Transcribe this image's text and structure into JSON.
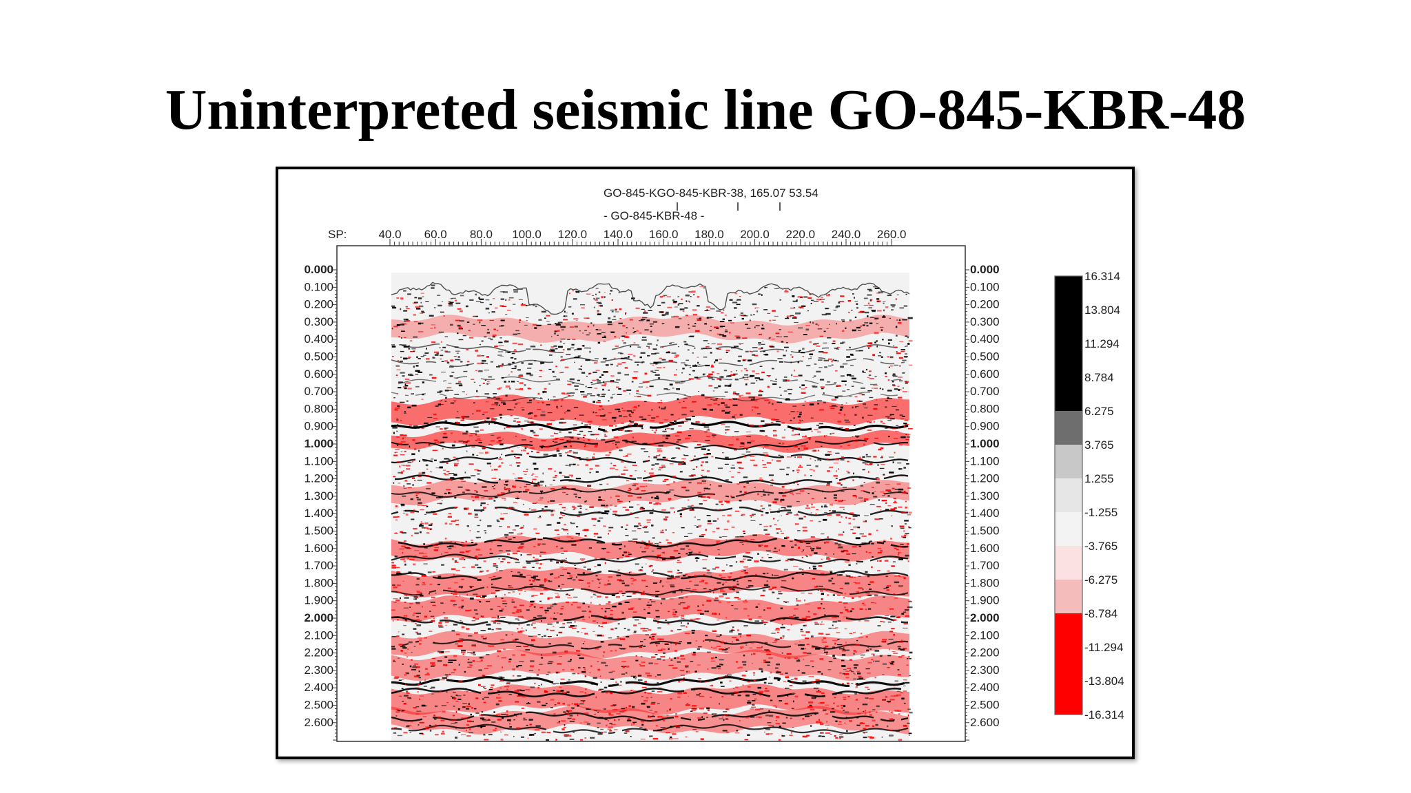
{
  "slide": {
    "title": "Uninterpreted seismic line GO-845-KBR-48"
  },
  "seismic_section": {
    "header_line_1": "GO-845-KGO-845-KBR-38, 165.07 53.54",
    "header_line_2": "- GO-845-KBR-48 -",
    "shotpoint_axis_label": "SP:",
    "shotpoint_ticks": [
      "40.0",
      "60.0",
      "80.0",
      "100.0",
      "120.0",
      "140.0",
      "160.0",
      "180.0",
      "200.0",
      "220.0",
      "240.0",
      "260.0"
    ],
    "time_ticks": [
      "0.000",
      "0.100",
      "0.200",
      "0.300",
      "0.400",
      "0.500",
      "0.600",
      "0.700",
      "0.800",
      "0.900",
      "1.000",
      "1.100",
      "1.200",
      "1.300",
      "1.400",
      "1.500",
      "1.600",
      "1.700",
      "1.800",
      "1.900",
      "2.000",
      "2.100",
      "2.200",
      "2.300",
      "2.400",
      "2.500",
      "2.600"
    ],
    "bold_time_ticks": [
      "0.000",
      "1.000",
      "2.000"
    ],
    "colors": {
      "positive": "#000000",
      "negative": "#ff0000",
      "background": "#f2f2f2"
    }
  },
  "colorbar": {
    "labels": [
      "16.314",
      "13.804",
      "11.294",
      "8.784",
      "6.275",
      "3.765",
      "1.255",
      "-1.255",
      "-3.765",
      "-6.275",
      "-8.784",
      "-11.294",
      "-13.804",
      "-16.314"
    ],
    "bands": [
      "#000000",
      "#000000",
      "#000000",
      "#000000",
      "#6e6e6e",
      "#c8c8c8",
      "#e6e6e6",
      "#f3f3f3",
      "#fbe1e1",
      "#f5bcbc",
      "#ff0000",
      "#ff0000",
      "#ff0000"
    ]
  }
}
